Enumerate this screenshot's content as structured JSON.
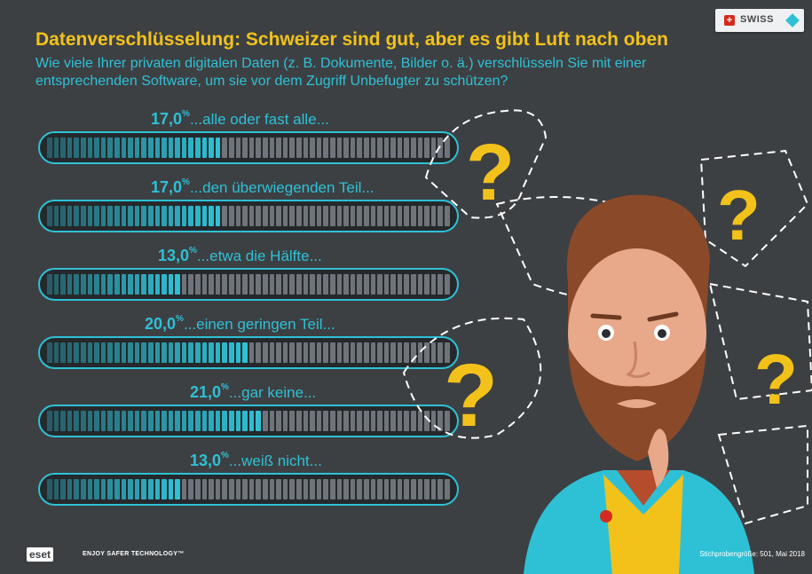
{
  "header": {
    "title": "Datenverschlüsselung: Schweizer sind gut, aber es gibt Luft nach oben",
    "subtitle": "Wie viele Ihrer privaten digitalen Daten (z. B. Dokumente, Bilder o. ä.) verschlüsseln Sie mit einer entsprechenden Software, um sie vor dem Zugriff Unbefugter zu schützen?"
  },
  "badge": {
    "label": "SWISS",
    "flag_glyph": "+"
  },
  "chart_data": {
    "type": "bar",
    "orientation": "horizontal",
    "title": "Datenverschlüsselung: Schweizer sind gut, aber es gibt Luft nach oben",
    "categories": [
      "...alle oder fast alle...",
      "...den überwiegenden Teil...",
      "...etwa die Hälfte...",
      "...einen geringen Teil...",
      "...gar keine...",
      "...weiß nicht..."
    ],
    "value_labels": [
      "17,0",
      "17,0",
      "13,0",
      "20,0",
      "21,0",
      "13,0"
    ],
    "values": [
      17.0,
      17.0,
      13.0,
      20.0,
      21.0,
      13.0
    ],
    "unit": "%",
    "xlim": [
      0,
      40
    ],
    "colors": {
      "filled": "#2ec1d6",
      "empty": "#6e7479",
      "frame": "#2ec1d6"
    }
  },
  "footer": {
    "logo": "eset",
    "claim": "ENJOY SAFER TECHNOLOGY™",
    "source": "Stichprobengröße: 501, Mai 2018"
  },
  "colors": {
    "background": "#3d4043",
    "title": "#f2c21b",
    "accent": "#2ec1d6"
  }
}
